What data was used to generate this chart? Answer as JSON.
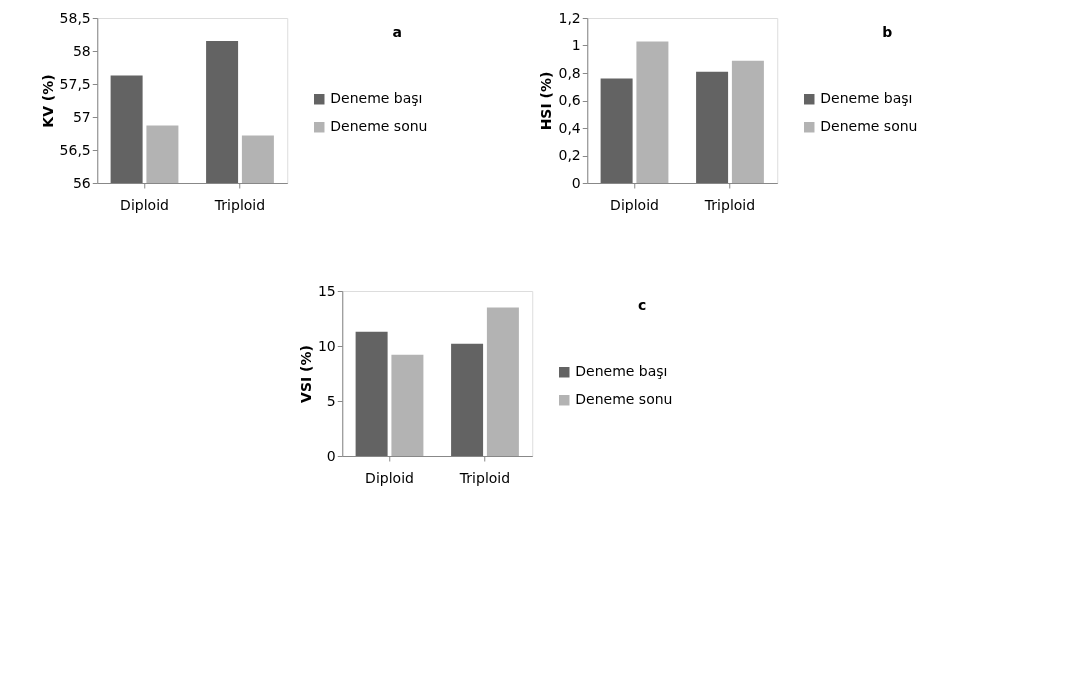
{
  "chart_data": [
    {
      "type": "bar",
      "ylabel": "KV (%)",
      "annotations": [
        "a"
      ],
      "categories": [
        "Diploid",
        "Triploid"
      ],
      "series": [
        {
          "name": "Deneme başı",
          "color": "#636363",
          "values": [
            57.63,
            58.15
          ]
        },
        {
          "name": "Deneme sonu",
          "color": "#b3b3b3",
          "values": [
            56.87,
            56.72
          ]
        }
      ],
      "ylim": [
        56,
        58.5
      ],
      "yticks": [
        56,
        {
          "value": 56.5,
          "label": "56,5"
        },
        57,
        {
          "value": 57.5,
          "label": "57,5"
        },
        58,
        {
          "value": 58.5,
          "label": "58,5"
        }
      ],
      "grid": false,
      "legend": "right"
    },
    {
      "type": "bar",
      "ylabel": "HSI (%)",
      "annotations": [
        "b"
      ],
      "categories": [
        "Diploid",
        "Triploid"
      ],
      "series": [
        {
          "name": "Deneme başı",
          "color": "#636363",
          "values": [
            0.76,
            0.81
          ]
        },
        {
          "name": "Deneme sonu",
          "color": "#b3b3b3",
          "values": [
            1.03,
            0.89
          ]
        }
      ],
      "ylim": [
        0,
        1.2
      ],
      "yticks": [
        0,
        {
          "value": 0.2,
          "label": "0,2"
        },
        {
          "value": 0.4,
          "label": "0,4"
        },
        {
          "value": 0.6,
          "label": "0,6"
        },
        {
          "value": 0.8,
          "label": "0,8"
        },
        1,
        {
          "value": 1.2,
          "label": "1,2"
        }
      ],
      "grid": false,
      "legend": "right"
    },
    {
      "type": "bar",
      "ylabel": "VSI (%)",
      "annotations": [
        "c"
      ],
      "categories": [
        "Diploid",
        "Triploid"
      ],
      "series": [
        {
          "name": "Deneme başı",
          "color": "#636363",
          "values": [
            11.3,
            10.2
          ]
        },
        {
          "name": "Deneme sonu",
          "color": "#b3b3b3",
          "values": [
            9.2,
            13.5
          ]
        }
      ],
      "ylim": [
        0,
        15
      ],
      "yticks": [
        0,
        5,
        10,
        15
      ],
      "grid": false,
      "legend": "right"
    }
  ]
}
